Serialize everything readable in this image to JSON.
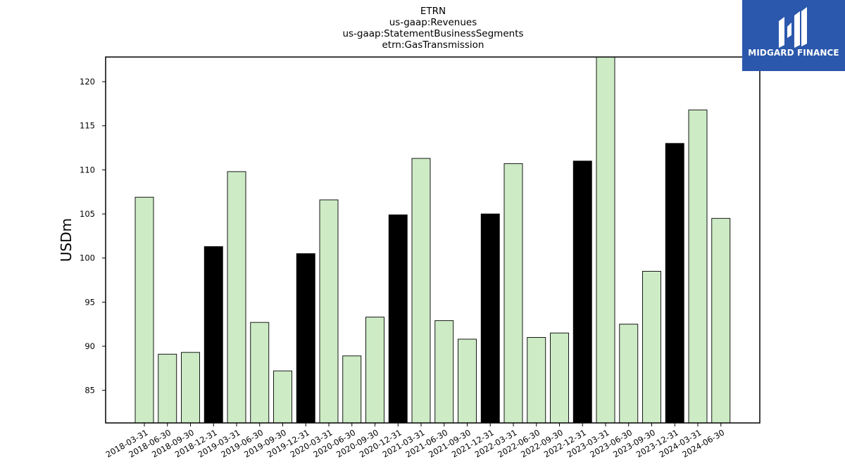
{
  "chart_data": {
    "type": "bar",
    "title_lines": [
      "ETRN",
      "us-gaap:Revenues",
      "us-gaap:StatementBusinessSegments",
      "etrn:GasTransmission"
    ],
    "xlabel": "",
    "ylabel": "USDm",
    "ylim": [
      81.3,
      122.8
    ],
    "yticks": [
      85,
      90,
      95,
      100,
      105,
      110,
      115,
      120
    ],
    "grid": false,
    "categories": [
      "2018-03-31",
      "2018-06-30",
      "2018-09-30",
      "2018-12-31",
      "2019-03-31",
      "2019-06-30",
      "2019-09-30",
      "2019-12-31",
      "2020-03-31",
      "2020-06-30",
      "2020-09-30",
      "2020-12-31",
      "2021-03-31",
      "2021-06-30",
      "2021-09-30",
      "2021-12-31",
      "2022-03-31",
      "2022-06-30",
      "2022-09-30",
      "2022-12-31",
      "2023-03-31",
      "2023-06-30",
      "2023-09-30",
      "2023-12-31",
      "2024-03-31",
      "2024-06-30"
    ],
    "values": [
      106.9,
      89.1,
      89.3,
      101.3,
      109.8,
      92.7,
      87.2,
      100.5,
      106.6,
      88.9,
      93.3,
      104.9,
      111.3,
      92.9,
      90.8,
      105.0,
      110.7,
      91.0,
      91.5,
      111.0,
      123.0,
      92.5,
      98.5,
      113.0,
      116.8,
      104.5
    ],
    "highlight_categories": [
      "2018-12-31",
      "2019-12-31",
      "2020-12-31",
      "2021-12-31",
      "2022-12-31",
      "2023-12-31"
    ],
    "colors": {
      "bar": "#cdebc5",
      "highlight": "#000000",
      "edge": "#000000"
    }
  },
  "logo": {
    "text": "MIDGARD FINANCE",
    "background": "#2b58ac"
  }
}
